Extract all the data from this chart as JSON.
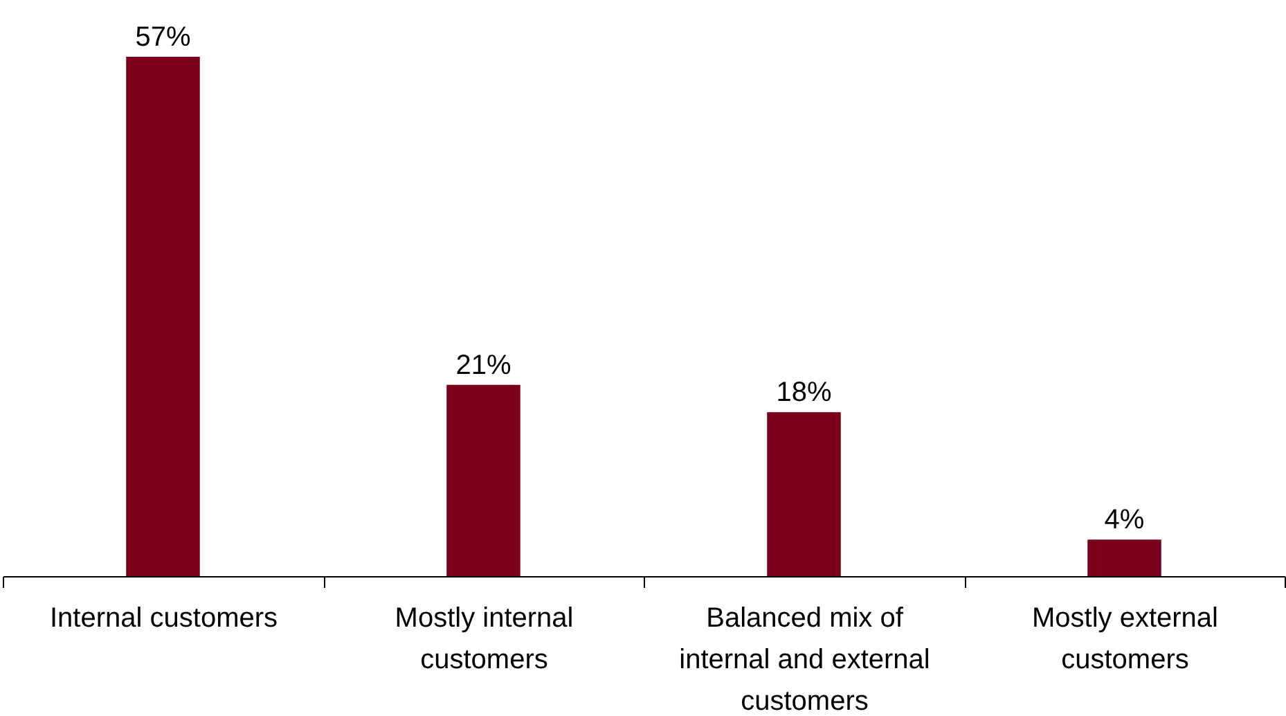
{
  "chart_data": {
    "type": "bar",
    "categories": [
      "Internal customers",
      "Mostly internal customers",
      "Balanced mix of internal and external customers",
      "Mostly external customers"
    ],
    "values": [
      57,
      21,
      18,
      4
    ],
    "value_labels": [
      "57%",
      "21%",
      "18%",
      "4%"
    ],
    "color": "#7b001c"
  }
}
